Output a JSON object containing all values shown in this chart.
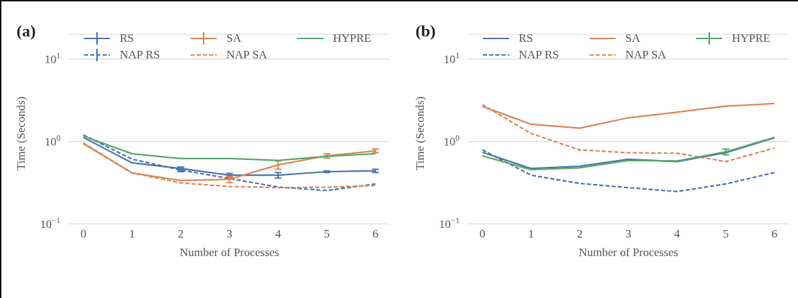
{
  "chart_data": [
    {
      "type": "line",
      "title": "(a)",
      "xlabel": "Number of Processes",
      "ylabel": "Time (Seconds)",
      "x": [
        0,
        1,
        2,
        3,
        4,
        5,
        6
      ],
      "xlim": [
        -0.3,
        6.3
      ],
      "xticks": [
        0,
        1,
        2,
        3,
        4,
        5,
        6
      ],
      "log": "y",
      "ylim": [
        0.1,
        20
      ],
      "yticks": [
        {
          "value": 0.1,
          "label": "10$^{−1}$"
        },
        {
          "value": 1,
          "label": "10$^{0}$"
        },
        {
          "value": 10,
          "label": "10$^{1}$"
        }
      ],
      "grid": "y",
      "legend": "top",
      "marker": "none",
      "series": [
        {
          "name": "RS",
          "color": "#4c72b0",
          "line_style": "solid",
          "values": [
            1.12,
            0.55,
            0.47,
            0.39,
            0.39,
            0.43,
            0.44
          ],
          "errors": [
            null,
            null,
            0.02,
            0.02,
            0.03,
            0.01,
            0.02
          ]
        },
        {
          "name": "NAP RS",
          "color": "#4c72b0",
          "line_style": "dashed",
          "values": [
            1.2,
            0.61,
            0.45,
            0.355,
            0.28,
            0.254,
            0.305
          ],
          "errors": [
            null,
            null,
            0.02,
            null,
            null,
            null,
            null
          ]
        },
        {
          "name": "SA",
          "color": "#dd8452",
          "line_style": "solid",
          "values": [
            0.94,
            0.415,
            0.336,
            0.347,
            0.52,
            0.67,
            0.77
          ],
          "errors": [
            null,
            null,
            null,
            0.03,
            0.06,
            0.04,
            0.04
          ]
        },
        {
          "name": "NAP SA",
          "color": "#dd8452",
          "line_style": "dashed",
          "values": [
            0.96,
            0.415,
            0.314,
            0.284,
            0.275,
            0.278,
            0.292
          ]
        },
        {
          "name": "HYPRE",
          "color": "#55a868",
          "line_style": "solid",
          "values": [
            1.16,
            0.71,
            0.62,
            0.62,
            0.59,
            0.66,
            0.71
          ]
        }
      ]
    },
    {
      "type": "line",
      "title": "(b)",
      "xlabel": "Number of Processes",
      "ylabel": "Time (Seconds)",
      "x": [
        0,
        1,
        2,
        3,
        4,
        5,
        6
      ],
      "xlim": [
        -0.3,
        6.3
      ],
      "xticks": [
        0,
        1,
        2,
        3,
        4,
        5,
        6
      ],
      "log": "y",
      "ylim": [
        0.1,
        20
      ],
      "yticks": [
        {
          "value": 0.1,
          "label": "10$^{−1}$"
        },
        {
          "value": 1,
          "label": "10$^{0}$"
        },
        {
          "value": 10,
          "label": "10$^{1}$"
        }
      ],
      "grid": "y",
      "legend": "top",
      "marker": "none",
      "series": [
        {
          "name": "RS",
          "color": "#4c72b0",
          "line_style": "solid",
          "values": [
            0.74,
            0.47,
            0.5,
            0.61,
            0.57,
            0.73,
            1.11
          ]
        },
        {
          "name": "NAP RS",
          "color": "#4c72b0",
          "line_style": "dashed",
          "values": [
            0.79,
            0.39,
            0.31,
            0.275,
            0.247,
            0.305,
            0.42
          ]
        },
        {
          "name": "SA",
          "color": "#dd8452",
          "line_style": "solid",
          "values": [
            2.67,
            1.62,
            1.45,
            1.94,
            2.27,
            2.68,
            2.89
          ]
        },
        {
          "name": "NAP SA",
          "color": "#dd8452",
          "line_style": "dashed",
          "values": [
            2.8,
            1.25,
            0.79,
            0.73,
            0.72,
            0.57,
            0.83
          ]
        },
        {
          "name": "HYPRE",
          "color": "#55a868",
          "line_style": "solid",
          "values": [
            0.67,
            0.455,
            0.48,
            0.59,
            0.58,
            0.75,
            1.12
          ],
          "errors": [
            null,
            null,
            null,
            null,
            null,
            0.06,
            null
          ]
        }
      ]
    }
  ]
}
